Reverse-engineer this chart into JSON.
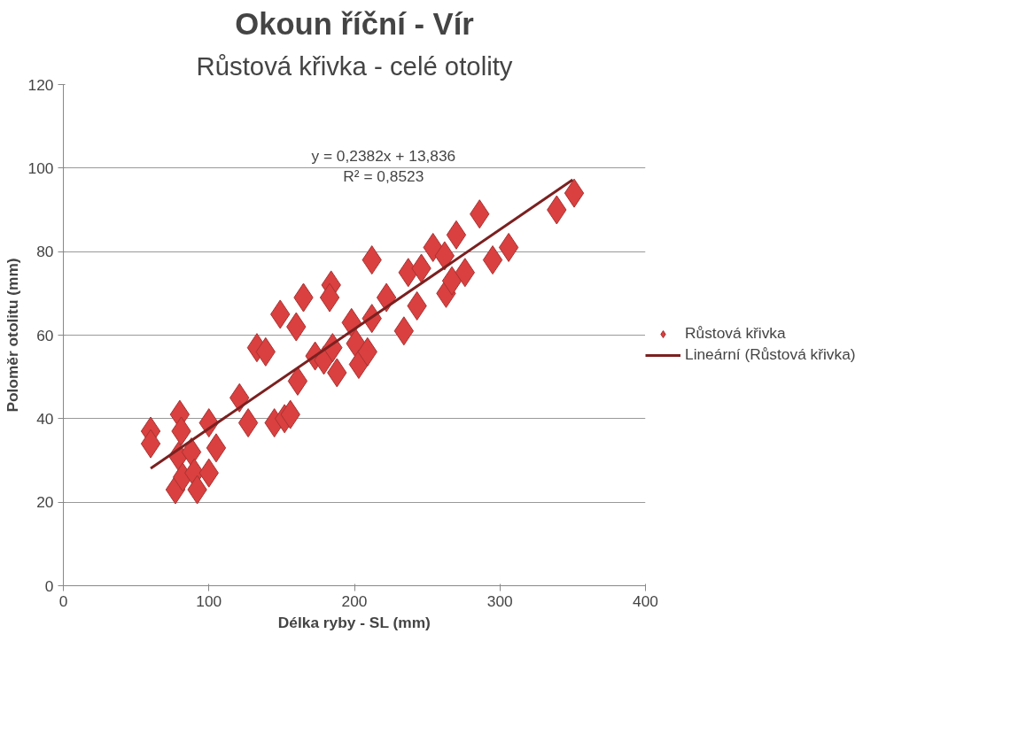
{
  "chart_data": {
    "type": "scatter",
    "title": "Okoun říční - Vír",
    "subtitle": "Růstová křivka - celé otolity",
    "xlabel": "Délka ryby - SL (mm)",
    "ylabel": "Poloměr otolitu (mm)",
    "xlim": [
      0,
      400
    ],
    "xticks": [
      0,
      100,
      200,
      300,
      400
    ],
    "ylim": [
      0,
      120
    ],
    "yticks": [
      0,
      20,
      40,
      60,
      80,
      100,
      120
    ],
    "grid": "y",
    "legend": "right",
    "series": [
      {
        "name": "Růstová křivka",
        "marker": "diamond",
        "color": "#d9403f",
        "x": [
          60,
          60,
          80,
          81,
          79,
          88,
          77,
          82,
          90,
          92,
          100,
          100,
          105,
          121,
          127,
          133,
          139,
          145,
          152,
          156,
          149,
          160,
          161,
          165,
          173,
          179,
          184,
          185,
          183,
          188,
          198,
          201,
          203,
          209,
          212,
          212,
          222,
          234,
          237,
          243,
          246,
          254,
          262,
          263,
          267,
          270,
          276,
          286,
          295,
          306,
          339,
          351
        ],
        "values": [
          37,
          34,
          41,
          37,
          31,
          32,
          23,
          26,
          27,
          23,
          27,
          39,
          33,
          45,
          39,
          57,
          56,
          39,
          40,
          41,
          65,
          62,
          49,
          69,
          55,
          54,
          72,
          57,
          69,
          51,
          63,
          58,
          53,
          56,
          78,
          64,
          69,
          61,
          75,
          67,
          76,
          81,
          79,
          70,
          73,
          84,
          75,
          89,
          78,
          81,
          90,
          94
        ]
      },
      {
        "name": "Lineární (Růstová křivka)",
        "type": "line",
        "marker": "none",
        "color": "#7b2020",
        "x": [
          60,
          350
        ],
        "values": [
          28.1,
          97.2
        ]
      }
    ],
    "annotations": [
      "y = 0,2382x + 13,836",
      "R² = 0,8523"
    ]
  }
}
